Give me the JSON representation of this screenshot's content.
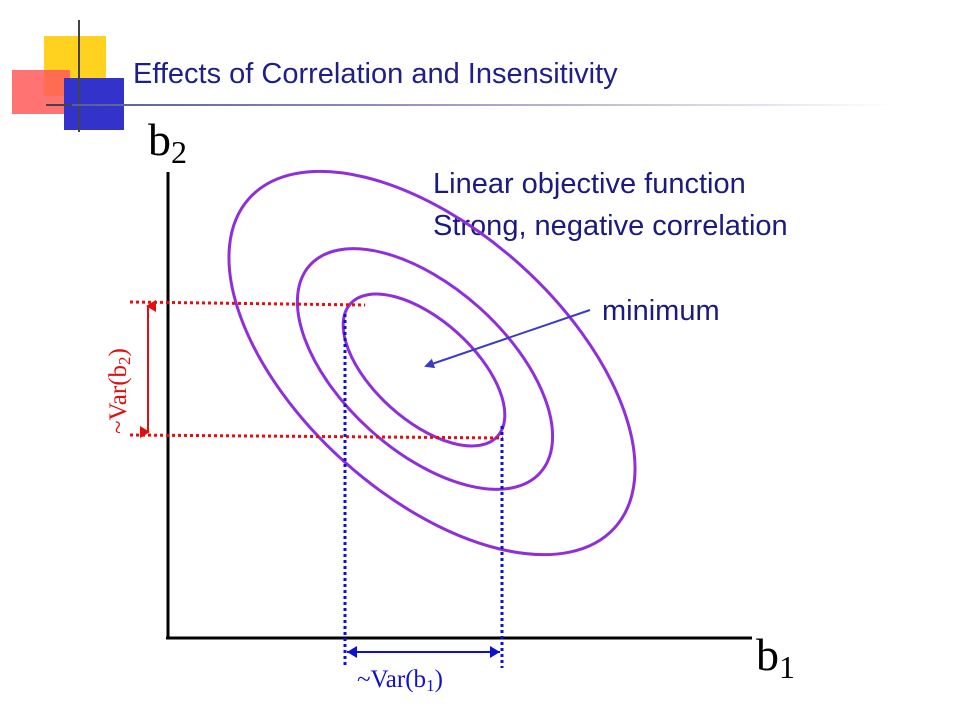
{
  "slide": {
    "title": "Effects of Correlation and Insensitivity",
    "colors": {
      "title": "#1f1f8a",
      "text": "#1a1a80",
      "axis": "#000000",
      "ellipse": "#8f2fdc",
      "red_guides": "#e01010",
      "blue_guides": "#1010d0",
      "arrow": "#3b3bc7",
      "deco_yellow": "#ffd21f",
      "deco_red": "#ff5a5a",
      "deco_blue": "#3333cc"
    }
  },
  "annotations": {
    "line1": "Linear objective function",
    "line2": "Strong, negative correlation",
    "minimum_label": "minimum"
  },
  "axes": {
    "y_label_base": "b",
    "y_label_sub": "2",
    "x_label_base": "b",
    "x_label_sub": "1"
  },
  "variance_labels": {
    "var_b2": {
      "prefix": "~Var(b",
      "sub": "2",
      "suffix": ")"
    },
    "var_b1": {
      "prefix": "~Var(b",
      "sub": "1",
      "suffix": ")"
    }
  }
}
